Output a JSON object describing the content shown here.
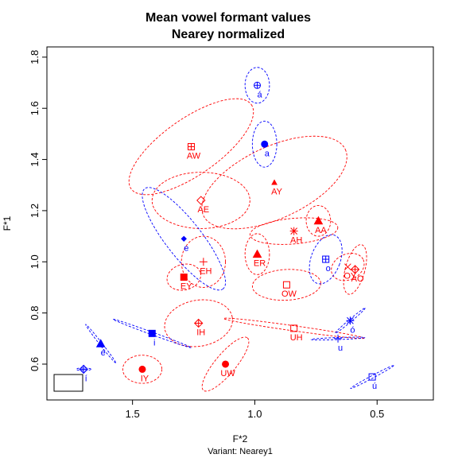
{
  "colors": {
    "red": "#ff0000",
    "blue": "#0000ff",
    "frame": "#000000"
  },
  "chart_data": {
    "type": "scatter",
    "title": [
      "Mean vowel formant values",
      "Nearey normalized"
    ],
    "xlabel": "F*2",
    "ylabel": "F*1",
    "subtitle": "Variant: Nearey1",
    "xlim": [
      1.85,
      0.27
    ],
    "ylim": [
      1.84,
      0.46
    ],
    "xticks": [
      1.5,
      1.0,
      0.5
    ],
    "xtick_labels": [
      "1.5",
      "1.0",
      "0.5"
    ],
    "yticks": [
      0.6,
      0.8,
      1.0,
      1.2,
      1.4,
      1.6,
      1.8
    ],
    "ytick_labels": [
      "0.6",
      "0.8",
      "1.0",
      "1.2",
      "1.4",
      "1.6",
      "1.8"
    ],
    "grid": false,
    "points": [
      {
        "label": "IY",
        "x": 1.46,
        "y": 0.58,
        "color": "red",
        "marker": "circle",
        "ell": {
          "rx": 0.08,
          "ry": 0.055,
          "rot": 0
        }
      },
      {
        "label": "UW",
        "x": 1.12,
        "y": 0.6,
        "color": "red",
        "marker": "circle",
        "ell": {
          "rx": 0.14,
          "ry": 0.04,
          "rot": -50
        }
      },
      {
        "label": "IH",
        "x": 1.23,
        "y": 0.76,
        "color": "red",
        "marker": "diamond-plus",
        "ell": {
          "rx": 0.14,
          "ry": 0.09,
          "rot": -10
        }
      },
      {
        "label": "UH",
        "x": 0.84,
        "y": 0.74,
        "color": "red",
        "marker": "square",
        "ell": {
          "rx": 0.29,
          "ry": 0.01,
          "rot": 8
        }
      },
      {
        "label": "OW",
        "x": 0.87,
        "y": 0.91,
        "color": "red",
        "marker": "square",
        "ell": {
          "rx": 0.14,
          "ry": 0.06,
          "rot": -3
        }
      },
      {
        "label": "EY",
        "x": 1.29,
        "y": 0.94,
        "color": "red",
        "marker": "square-filled",
        "ell": {
          "rx": 0.07,
          "ry": 0.05,
          "rot": -15
        }
      },
      {
        "label": "EH",
        "x": 1.21,
        "y": 1.0,
        "color": "red",
        "marker": "plus",
        "ell": {
          "rx": 0.09,
          "ry": 0.1,
          "rot": 0
        }
      },
      {
        "label": "AO",
        "x": 0.59,
        "y": 0.97,
        "color": "red",
        "marker": "diamond-plus",
        "ell": {
          "rx": 0.04,
          "ry": 0.1,
          "rot": 15
        }
      },
      {
        "label": "OY",
        "x": 0.62,
        "y": 0.98,
        "color": "red",
        "marker": "x",
        "ell": {
          "rx": 0.07,
          "ry": 0.05,
          "rot": -25
        }
      },
      {
        "label": "ER",
        "x": 0.99,
        "y": 1.03,
        "color": "red",
        "marker": "triangle",
        "ell": {
          "rx": 0.05,
          "ry": 0.08,
          "rot": 0
        }
      },
      {
        "label": "AH",
        "x": 0.84,
        "y": 1.12,
        "color": "red",
        "marker": "asterisk",
        "ell": {
          "rx": 0.18,
          "ry": 0.05,
          "rot": -5
        }
      },
      {
        "label": "AA",
        "x": 0.74,
        "y": 1.16,
        "color": "red",
        "marker": "triangle",
        "ell": {
          "rx": 0.05,
          "ry": 0.06,
          "rot": 0
        }
      },
      {
        "label": "AE",
        "x": 1.22,
        "y": 1.24,
        "color": "red",
        "marker": "diamond",
        "ell": {
          "rx": 0.2,
          "ry": 0.11,
          "rot": 0
        }
      },
      {
        "label": "AY",
        "x": 0.92,
        "y": 1.31,
        "color": "red",
        "marker": "triangle-small",
        "ell": {
          "rx": 0.32,
          "ry": 0.14,
          "rot": -25
        }
      },
      {
        "label": "AW",
        "x": 1.26,
        "y": 1.45,
        "color": "red",
        "marker": "square-plus",
        "ell": {
          "rx": 0.3,
          "ry": 0.11,
          "rot": -35
        }
      },
      {
        "label": "i",
        "x": 1.42,
        "y": 0.72,
        "color": "blue",
        "marker": "square-filled",
        "ell": {
          "rx": 0.17,
          "ry": 0.005,
          "rot": 20
        }
      },
      {
        "label": "í",
        "x": 1.7,
        "y": 0.58,
        "color": "blue",
        "marker": "diamond-plus",
        "ell": {
          "rx": 0.03,
          "ry": 0.005,
          "rot": 0
        }
      },
      {
        "label": "é",
        "x": 1.63,
        "y": 0.68,
        "color": "blue",
        "marker": "triangle",
        "ell": {
          "rx": 0.1,
          "ry": 0.005,
          "rot": 52
        }
      },
      {
        "label": "e",
        "x": 1.29,
        "y": 1.09,
        "color": "blue",
        "marker": "diamond-filled",
        "ell": {
          "rx": 0.26,
          "ry": 0.07,
          "rot": 52
        }
      },
      {
        "label": "u",
        "x": 0.66,
        "y": 0.7,
        "color": "blue",
        "marker": "plus",
        "ell": {
          "rx": 0.11,
          "ry": 0.004,
          "rot": -2
        }
      },
      {
        "label": "ó",
        "x": 0.61,
        "y": 0.77,
        "color": "blue",
        "marker": "asterisk",
        "ell": {
          "rx": 0.08,
          "ry": 0.005,
          "rot": -40
        }
      },
      {
        "label": "ú",
        "x": 0.52,
        "y": 0.55,
        "color": "blue",
        "marker": "square",
        "ell": {
          "rx": 0.1,
          "ry": 0.005,
          "rot": -28
        }
      },
      {
        "label": "o",
        "x": 0.71,
        "y": 1.01,
        "color": "blue",
        "marker": "square-plus",
        "ell": {
          "rx": 0.06,
          "ry": 0.1,
          "rot": 20
        }
      },
      {
        "label": "a",
        "x": 0.96,
        "y": 1.46,
        "color": "blue",
        "marker": "circle",
        "ell": {
          "rx": 0.05,
          "ry": 0.09,
          "rot": 0
        }
      },
      {
        "label": "á",
        "x": 0.99,
        "y": 1.69,
        "color": "blue",
        "marker": "circle-plus",
        "ell": {
          "rx": 0.05,
          "ry": 0.07,
          "rot": 0
        }
      }
    ]
  }
}
